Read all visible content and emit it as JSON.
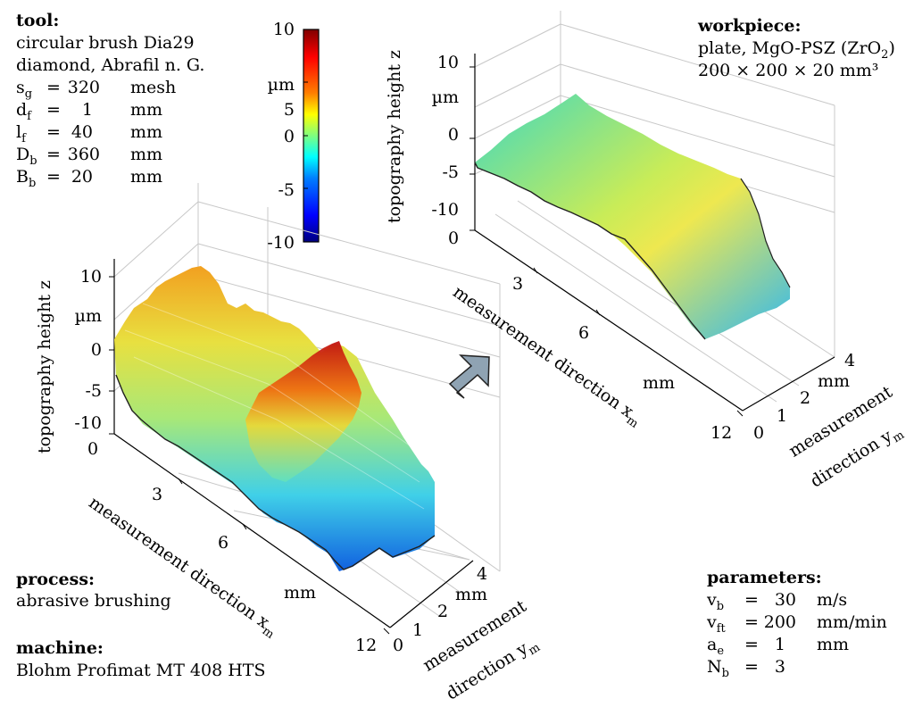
{
  "tool": {
    "heading": "tool:",
    "line1": "circular brush Dia29",
    "line2": "diamond, Abrafil n. G.",
    "params": [
      {
        "sym": "s",
        "sub": "g",
        "eq": "=",
        "value": "320",
        "unit": "mesh"
      },
      {
        "sym": "d",
        "sub": "f",
        "eq": "=",
        "value": "1",
        "unit": "mm"
      },
      {
        "sym": "l",
        "sub": "f",
        "eq": "=",
        "value": "40",
        "unit": "mm"
      },
      {
        "sym": "D",
        "sub": "b",
        "eq": "=",
        "value": "360",
        "unit": "mm"
      },
      {
        "sym": "B",
        "sub": "b",
        "eq": "=",
        "value": "20",
        "unit": "mm"
      }
    ]
  },
  "workpiece": {
    "heading": "workpiece:",
    "line1_pre": "plate, MgO-PSZ (ZrO",
    "line1_sub": "2",
    "line1_post": ")",
    "line2": "200 × 200 × 20 mm³"
  },
  "process": {
    "heading": "process:",
    "value": "abrasive brushing"
  },
  "machine": {
    "heading": "machine:",
    "value": "Blohm Profimat MT 408 HTS"
  },
  "parameters": {
    "heading": "parameters:",
    "rows": [
      {
        "sym": "v",
        "sub": "b",
        "eq": "=",
        "value": "30",
        "unit": "m/s"
      },
      {
        "sym": "v",
        "sub": "ft",
        "eq": "=",
        "value": "200",
        "unit": "mm/min"
      },
      {
        "sym": "a",
        "sub": "e",
        "eq": "=",
        "value": "1",
        "unit": "mm"
      },
      {
        "sym": "N",
        "sub": "b",
        "eq": "=",
        "value": "3",
        "unit": ""
      }
    ]
  },
  "colorbar": {
    "ticks": [
      "10",
      "5",
      "0",
      "-5",
      "-10"
    ],
    "unit": "µm",
    "unit_position_after_tick": "5",
    "colormap": [
      "#00007f",
      "#0000ff",
      "#007fff",
      "#00ffff",
      "#7fff7f",
      "#ffff00",
      "#ff7f00",
      "#ff0000",
      "#7f0000"
    ],
    "range": [
      -10,
      10
    ]
  },
  "plot_left": {
    "z_axis_label": "topography height z",
    "z_ticks": [
      "10",
      "0",
      "-5",
      "-10"
    ],
    "z_unit": "µm",
    "x_ticks": [
      "0",
      "3",
      "6",
      "12"
    ],
    "x_unit": "mm",
    "x_label_pre": "measurement direction x",
    "x_label_sub": "m",
    "y_ticks": [
      "0",
      "1",
      "2",
      "4"
    ],
    "y_unit": "mm",
    "y_label_line1": "measurement",
    "y_label_line2_pre": "direction y",
    "y_label_line2_sub": "m"
  },
  "plot_right": {
    "z_axis_label": "topography height z",
    "z_ticks": [
      "10",
      "0",
      "-5",
      "-10"
    ],
    "z_unit": "µm",
    "x_ticks": [
      "0",
      "3",
      "6",
      "12"
    ],
    "x_unit": "mm",
    "x_label_pre": "measurement direction x",
    "x_label_sub": "m",
    "y_ticks": [
      "0",
      "1",
      "2",
      "4"
    ],
    "y_unit": "mm",
    "y_label_line1": "measurement",
    "y_label_line2_pre": "direction y",
    "y_label_line2_sub": "m"
  },
  "arrow_color": "#8fa3b3"
}
